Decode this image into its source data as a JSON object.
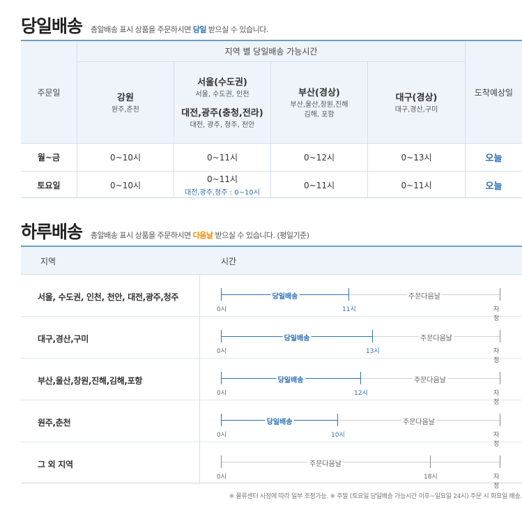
{
  "same_day": {
    "title": "당일배송",
    "desc_pre": "총알배송 표시 상품을 주문하시면 ",
    "desc_hl": "당일",
    "desc_post": " 받으실 수 있습니다.",
    "header": {
      "order_day": "주문일",
      "region_time": "지역 별  당일배송 가능시간",
      "arrival": "도착예상일"
    },
    "regions": [
      {
        "name": "강원",
        "sub": "원주,춘천"
      },
      {
        "name": "서울(수도권)",
        "sub": "서울, 수도권, 인천",
        "name2": "대전,광주(충청,전라)",
        "sub2": "대전, 광주, 청주, 천안"
      },
      {
        "name": "부산(경상)",
        "sub": "부산,울산,창원,진해",
        "sub_b": "김해, 포항"
      },
      {
        "name": "대구(경상)",
        "sub": "대구,경산,구미"
      }
    ],
    "rows": [
      {
        "day": "월~금",
        "times": [
          "0~10시",
          "0~11시",
          "0~12시",
          "0~13시"
        ],
        "note": "",
        "arrival": "오늘"
      },
      {
        "day": "토요일",
        "times": [
          "0~10시",
          "0~11시",
          "0~11시",
          "0~11시"
        ],
        "note": "대전,광주,청주 : 0~10시",
        "arrival": "오늘"
      }
    ]
  },
  "next_day": {
    "title": "하루배송",
    "desc_pre": "총알배송 표시 상품을 주문하시면 ",
    "desc_hl": "다음날",
    "desc_post": " 받으실 수 있습니다. (평일기준)",
    "header": {
      "region": "지역",
      "time": "시간"
    },
    "rows": [
      {
        "region": "서울, 수도권, 인천, 천안, 대전,광주,청주",
        "same_label": "당일배송",
        "next_label": "주문다음날",
        "start": "0시",
        "cutoff": "11시",
        "end": "자정",
        "cutoff_hour": 11
      },
      {
        "region": "대구,경산,구미",
        "same_label": "당일배송",
        "next_label": "주문다음날",
        "start": "0시",
        "cutoff": "13시",
        "end": "자정",
        "cutoff_hour": 13
      },
      {
        "region": "부산,울산,창원,진해,김해,포항",
        "same_label": "당일배송",
        "next_label": "주문다음날",
        "start": "0시",
        "cutoff": "12시",
        "end": "자정",
        "cutoff_hour": 12
      },
      {
        "region": "원주,춘천",
        "same_label": "당일배송",
        "next_label": "주문다음날",
        "start": "0시",
        "cutoff": "10시",
        "end": "자정",
        "cutoff_hour": 10
      },
      {
        "region": "그 외 지역",
        "same_label": "",
        "next_label": "주문다음날",
        "start": "0시",
        "cutoff": "18시",
        "end": "자정",
        "cutoff_hour": 18
      }
    ]
  },
  "footnote": "※ 물류센터 사정에 따라 일부 조정가능.     ※ 주말 (토요일 당일배송 가능시간 이후~일요일 24시) 주문 시 화요일 배송.",
  "colors": {
    "accent": "#2c6fb8",
    "highlight": "#f08c00",
    "header_bg": "#eef4fa"
  }
}
